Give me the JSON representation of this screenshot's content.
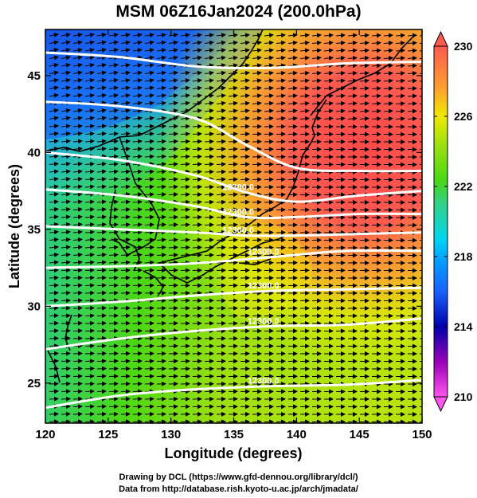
{
  "title": "MSM 06Z16Jan2024 (200.0hPa)",
  "map": {
    "xlabel": "Longitude (degrees)",
    "ylabel": "Latitude  (degrees)",
    "lon_range": [
      120,
      150
    ],
    "lat_range": [
      22.4,
      48
    ],
    "lon_ticks": [
      120,
      125,
      130,
      135,
      140,
      145,
      150
    ],
    "lat_ticks": [
      25,
      30,
      35,
      40,
      45
    ],
    "grid": false,
    "background_field": "temperature shading",
    "overlays": [
      "wind arrows",
      "geopotential height contours",
      "coastlines"
    ]
  },
  "colorbar": {
    "ticks": [
      210,
      214,
      218,
      222,
      226,
      230
    ],
    "min": 210,
    "max": 230,
    "colors": [
      "#ff55ee",
      "#9a00b8",
      "#0000aa",
      "#1a60ff",
      "#00d6f0",
      "#32d088",
      "#4cd814",
      "#9fe010",
      "#f0e800",
      "#ffa030",
      "#ff5a50"
    ]
  },
  "contours": [
    {
      "label": "12300.0",
      "pts": [
        [
          120,
          23.4
        ],
        [
          126,
          24.2
        ],
        [
          132,
          24.6
        ],
        [
          138,
          24.8
        ],
        [
          144,
          24.9
        ],
        [
          150,
          25.2
        ]
      ]
    },
    {
      "label": "12300.0",
      "pts": [
        [
          120,
          27.2
        ],
        [
          126,
          27.9
        ],
        [
          132,
          28.4
        ],
        [
          138,
          28.7
        ],
        [
          144,
          28.8
        ],
        [
          150,
          29.2
        ]
      ]
    },
    {
      "label": "12300.0",
      "pts": [
        [
          120,
          30.0
        ],
        [
          126,
          30.3
        ],
        [
          132,
          30.7
        ],
        [
          138,
          31.0
        ],
        [
          144,
          31.1
        ],
        [
          150,
          31.2
        ]
      ]
    },
    {
      "label": "12300.0",
      "pts": [
        [
          120,
          32.5
        ],
        [
          126,
          32.6
        ],
        [
          132,
          32.8
        ],
        [
          138,
          33.2
        ],
        [
          144,
          33.6
        ],
        [
          150,
          33.6
        ]
      ]
    },
    {
      "label": "12300.0",
      "pts": [
        [
          120,
          35.2
        ],
        [
          126,
          35.0
        ],
        [
          132,
          34.8
        ],
        [
          136,
          34.6
        ],
        [
          140,
          34.6
        ],
        [
          145,
          34.7
        ],
        [
          150,
          34.8
        ]
      ]
    },
    {
      "label": "12300.0",
      "pts": [
        [
          120,
          37.6
        ],
        [
          126,
          37.2
        ],
        [
          132,
          36.5
        ],
        [
          136,
          35.8
        ],
        [
          140,
          35.8
        ],
        [
          145,
          36.0
        ],
        [
          150,
          36.0
        ]
      ]
    },
    {
      "label": "12300.0",
      "pts": [
        [
          120,
          40.0
        ],
        [
          126,
          39.5
        ],
        [
          132,
          38.5
        ],
        [
          136,
          37.4
        ],
        [
          140,
          36.8
        ],
        [
          145,
          37.2
        ],
        [
          150,
          37.5
        ]
      ]
    },
    {
      "label": "",
      "pts": [
        [
          120,
          43.3
        ],
        [
          126,
          43.0
        ],
        [
          132,
          42.2
        ],
        [
          136,
          40.5
        ],
        [
          140,
          39.0
        ],
        [
          145,
          38.8
        ],
        [
          150,
          38.8
        ]
      ]
    },
    {
      "label": "",
      "pts": [
        [
          120,
          46.5
        ],
        [
          126,
          46.2
        ],
        [
          132,
          45.6
        ],
        [
          138,
          45.5
        ],
        [
          144,
          45.8
        ],
        [
          150,
          45.9
        ]
      ]
    }
  ],
  "credit": {
    "line1": "Drawing by DCL (https://www.gfd-dennou.org/library/dcl/)",
    "line2": "Data from http://database.rish.kyoto-u.ac.jp/arch/jmadata/"
  }
}
